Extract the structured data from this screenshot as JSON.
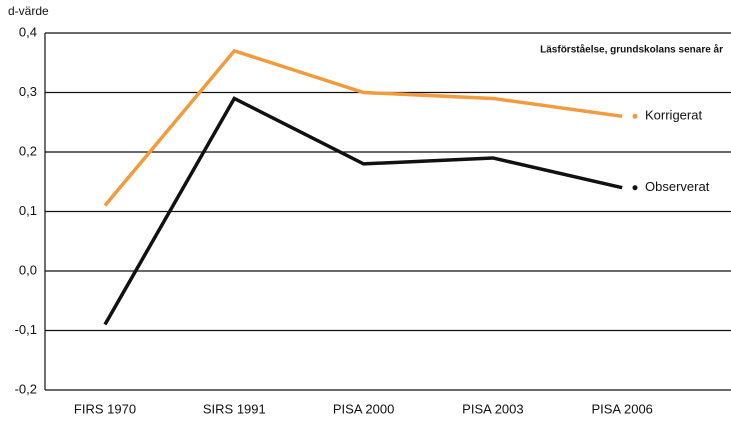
{
  "chart_data": {
    "type": "line",
    "y_label": "d-värde",
    "annotation": "Läsförståelse, grundskolans senare år",
    "categories": [
      "FIRS 1970",
      "SIRS 1991",
      "PISA 2000",
      "PISA 2003",
      "PISA 2006"
    ],
    "series": [
      {
        "name": "Korrigerat",
        "color": "#f39a3c",
        "values": [
          0.11,
          0.37,
          0.3,
          0.29,
          0.26
        ]
      },
      {
        "name": "Observerat",
        "color": "#111111",
        "values": [
          -0.09,
          0.29,
          0.18,
          0.19,
          0.14
        ]
      }
    ],
    "ylim": [
      -0.2,
      0.4
    ],
    "yticks": [
      {
        "value": -0.2,
        "label": "-0,2"
      },
      {
        "value": -0.1,
        "label": "-0,1"
      },
      {
        "value": 0,
        "label": "0,0"
      },
      {
        "value": 0.1,
        "label": "0,1"
      },
      {
        "value": 0.2,
        "label": "0,2"
      },
      {
        "value": 0.3,
        "label": "0,3"
      },
      {
        "value": 0.4,
        "label": "0,4"
      }
    ],
    "grid": true
  }
}
